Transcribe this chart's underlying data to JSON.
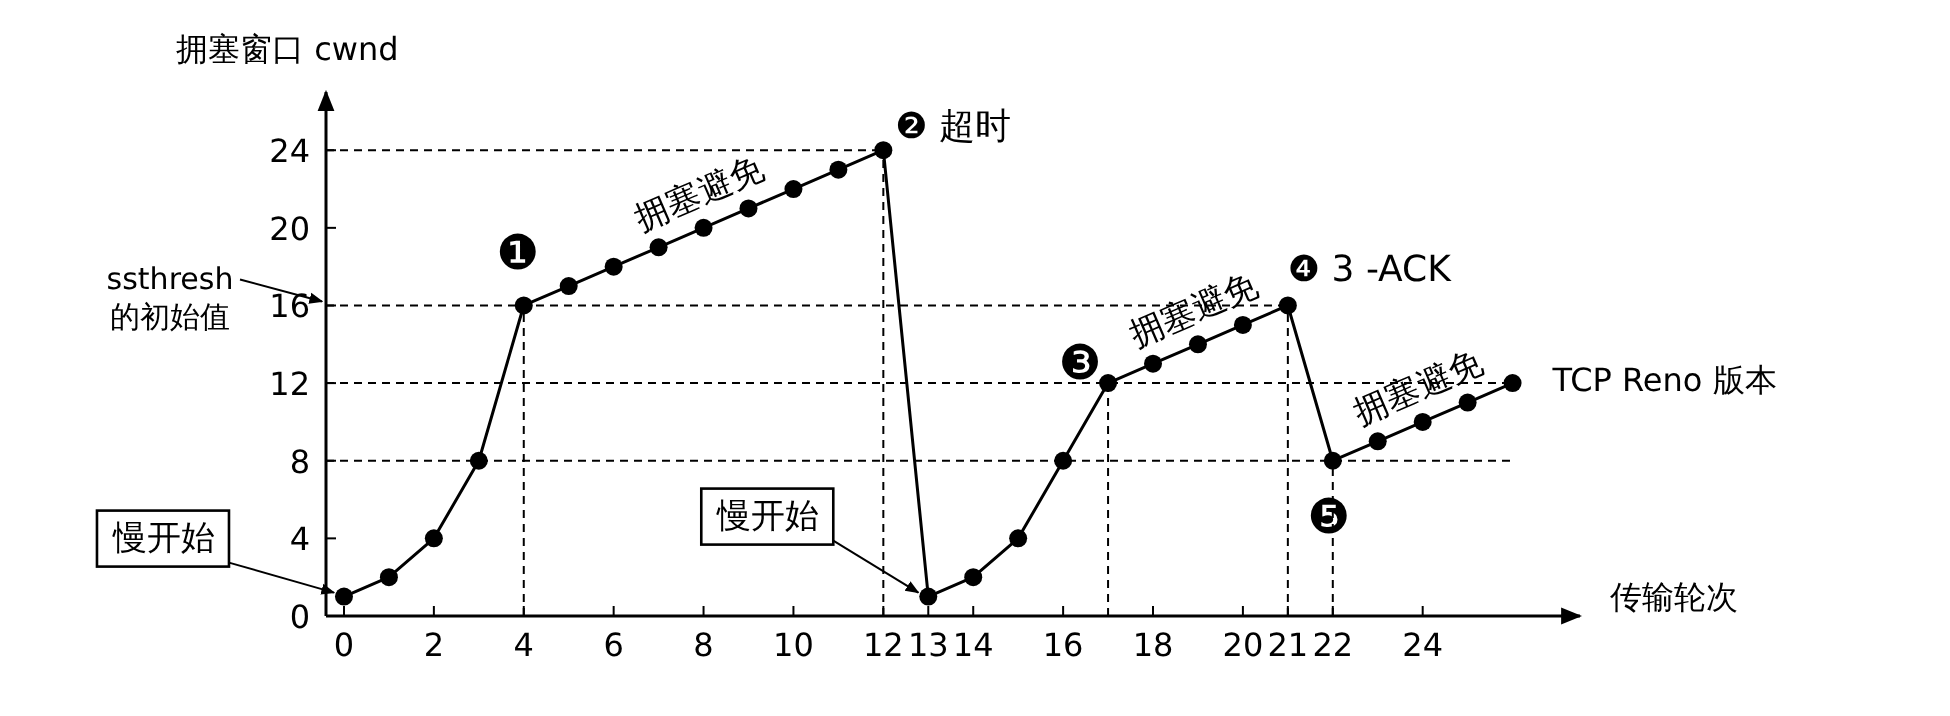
{
  "chart_data": {
    "type": "line",
    "ylabel": "拥塞窗口 cwnd",
    "xlabel": "传输轮次",
    "series": [
      {
        "color": "#000000",
        "x": [
          0,
          1,
          2,
          3,
          4,
          5,
          6,
          7,
          8,
          9,
          10,
          11,
          12,
          13,
          14,
          15,
          16,
          17,
          18,
          19,
          20,
          21,
          22,
          23,
          24,
          25,
          26
        ],
        "values": [
          1,
          2,
          4,
          8,
          16,
          17,
          18,
          19,
          20,
          21,
          22,
          23,
          24,
          1,
          2,
          4,
          8,
          12,
          13,
          14,
          15,
          16,
          8,
          9,
          10,
          11,
          12
        ]
      }
    ],
    "xlim": [
      -0.4,
      27.5
    ],
    "ylim": [
      0,
      27
    ],
    "xticks": [
      0,
      2,
      4,
      6,
      8,
      10,
      12,
      13,
      14,
      16,
      18,
      20,
      21,
      22,
      24
    ],
    "yticks": [
      0,
      4,
      8,
      12,
      16,
      20,
      24
    ],
    "marker": "circle",
    "line_style": "solid",
    "ref_lines": [
      {
        "axis": "y",
        "value": 24
      },
      {
        "axis": "y",
        "value": 16,
        "label": "ssthresh\n的初始值"
      },
      {
        "axis": "y",
        "value": 12
      },
      {
        "axis": "y",
        "value": 8
      },
      {
        "axis": "x",
        "value": 4
      },
      {
        "axis": "x",
        "value": 12
      },
      {
        "axis": "x",
        "value": 17
      },
      {
        "axis": "x",
        "value": 21
      },
      {
        "axis": "x",
        "value": 22
      }
    ],
    "annotations": [
      {
        "text": "❶",
        "x": 4,
        "y": 16
      },
      {
        "text": "❷ 超时",
        "x": 12,
        "y": 24
      },
      {
        "text": "拥塞避免",
        "x": 8,
        "y": 20
      },
      {
        "text": "❸",
        "x": 17,
        "y": 12
      },
      {
        "text": "拥塞避免",
        "x": 19,
        "y": 14
      },
      {
        "text": "❹ 3 -ACK",
        "x": 21,
        "y": 16
      },
      {
        "text": "❺",
        "x": 22,
        "y": 8
      },
      {
        "text": "拥塞避免",
        "x": 24,
        "y": 10
      },
      {
        "text": "TCP Reno 版本",
        "x": 26,
        "y": 12
      },
      {
        "text": "慢开始",
        "x": 0,
        "y": 1
      },
      {
        "text": "慢开始",
        "x": 13,
        "y": 1
      }
    ]
  }
}
